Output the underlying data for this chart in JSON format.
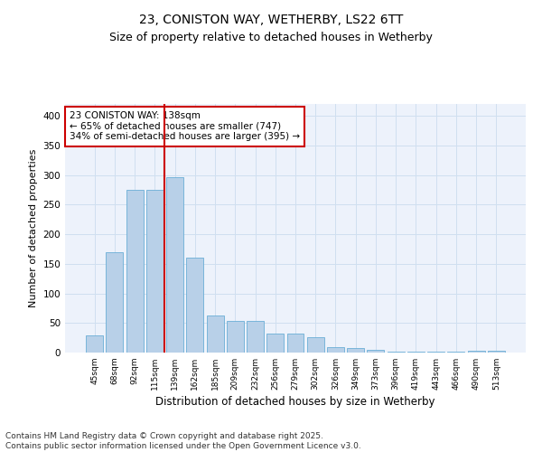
{
  "title": "23, CONISTON WAY, WETHERBY, LS22 6TT",
  "subtitle": "Size of property relative to detached houses in Wetherby",
  "xlabel": "Distribution of detached houses by size in Wetherby",
  "ylabel": "Number of detached properties",
  "categories": [
    "45sqm",
    "68sqm",
    "92sqm",
    "115sqm",
    "139sqm",
    "162sqm",
    "185sqm",
    "209sqm",
    "232sqm",
    "256sqm",
    "279sqm",
    "302sqm",
    "326sqm",
    "349sqm",
    "373sqm",
    "396sqm",
    "419sqm",
    "443sqm",
    "466sqm",
    "490sqm",
    "513sqm"
  ],
  "values": [
    29,
    170,
    275,
    275,
    297,
    160,
    63,
    54,
    54,
    32,
    32,
    26,
    9,
    8,
    5,
    2,
    1,
    2,
    1,
    3,
    3
  ],
  "bar_color": "#b8d0e8",
  "bar_edge_color": "#6aaed6",
  "grid_color": "#d0dff0",
  "background_color": "#edf2fb",
  "vline_color": "#cc0000",
  "annotation_text": "23 CONISTON WAY: 138sqm\n← 65% of detached houses are smaller (747)\n34% of semi-detached houses are larger (395) →",
  "annotation_box_color": "#ffffff",
  "annotation_box_edge_color": "#cc0000",
  "ylim": [
    0,
    420
  ],
  "yticks": [
    0,
    50,
    100,
    150,
    200,
    250,
    300,
    350,
    400
  ],
  "footer": "Contains HM Land Registry data © Crown copyright and database right 2025.\nContains public sector information licensed under the Open Government Licence v3.0.",
  "title_fontsize": 10,
  "subtitle_fontsize": 9,
  "annotation_fontsize": 7.5,
  "footer_fontsize": 6.5,
  "ylabel_fontsize": 8,
  "xlabel_fontsize": 8.5
}
